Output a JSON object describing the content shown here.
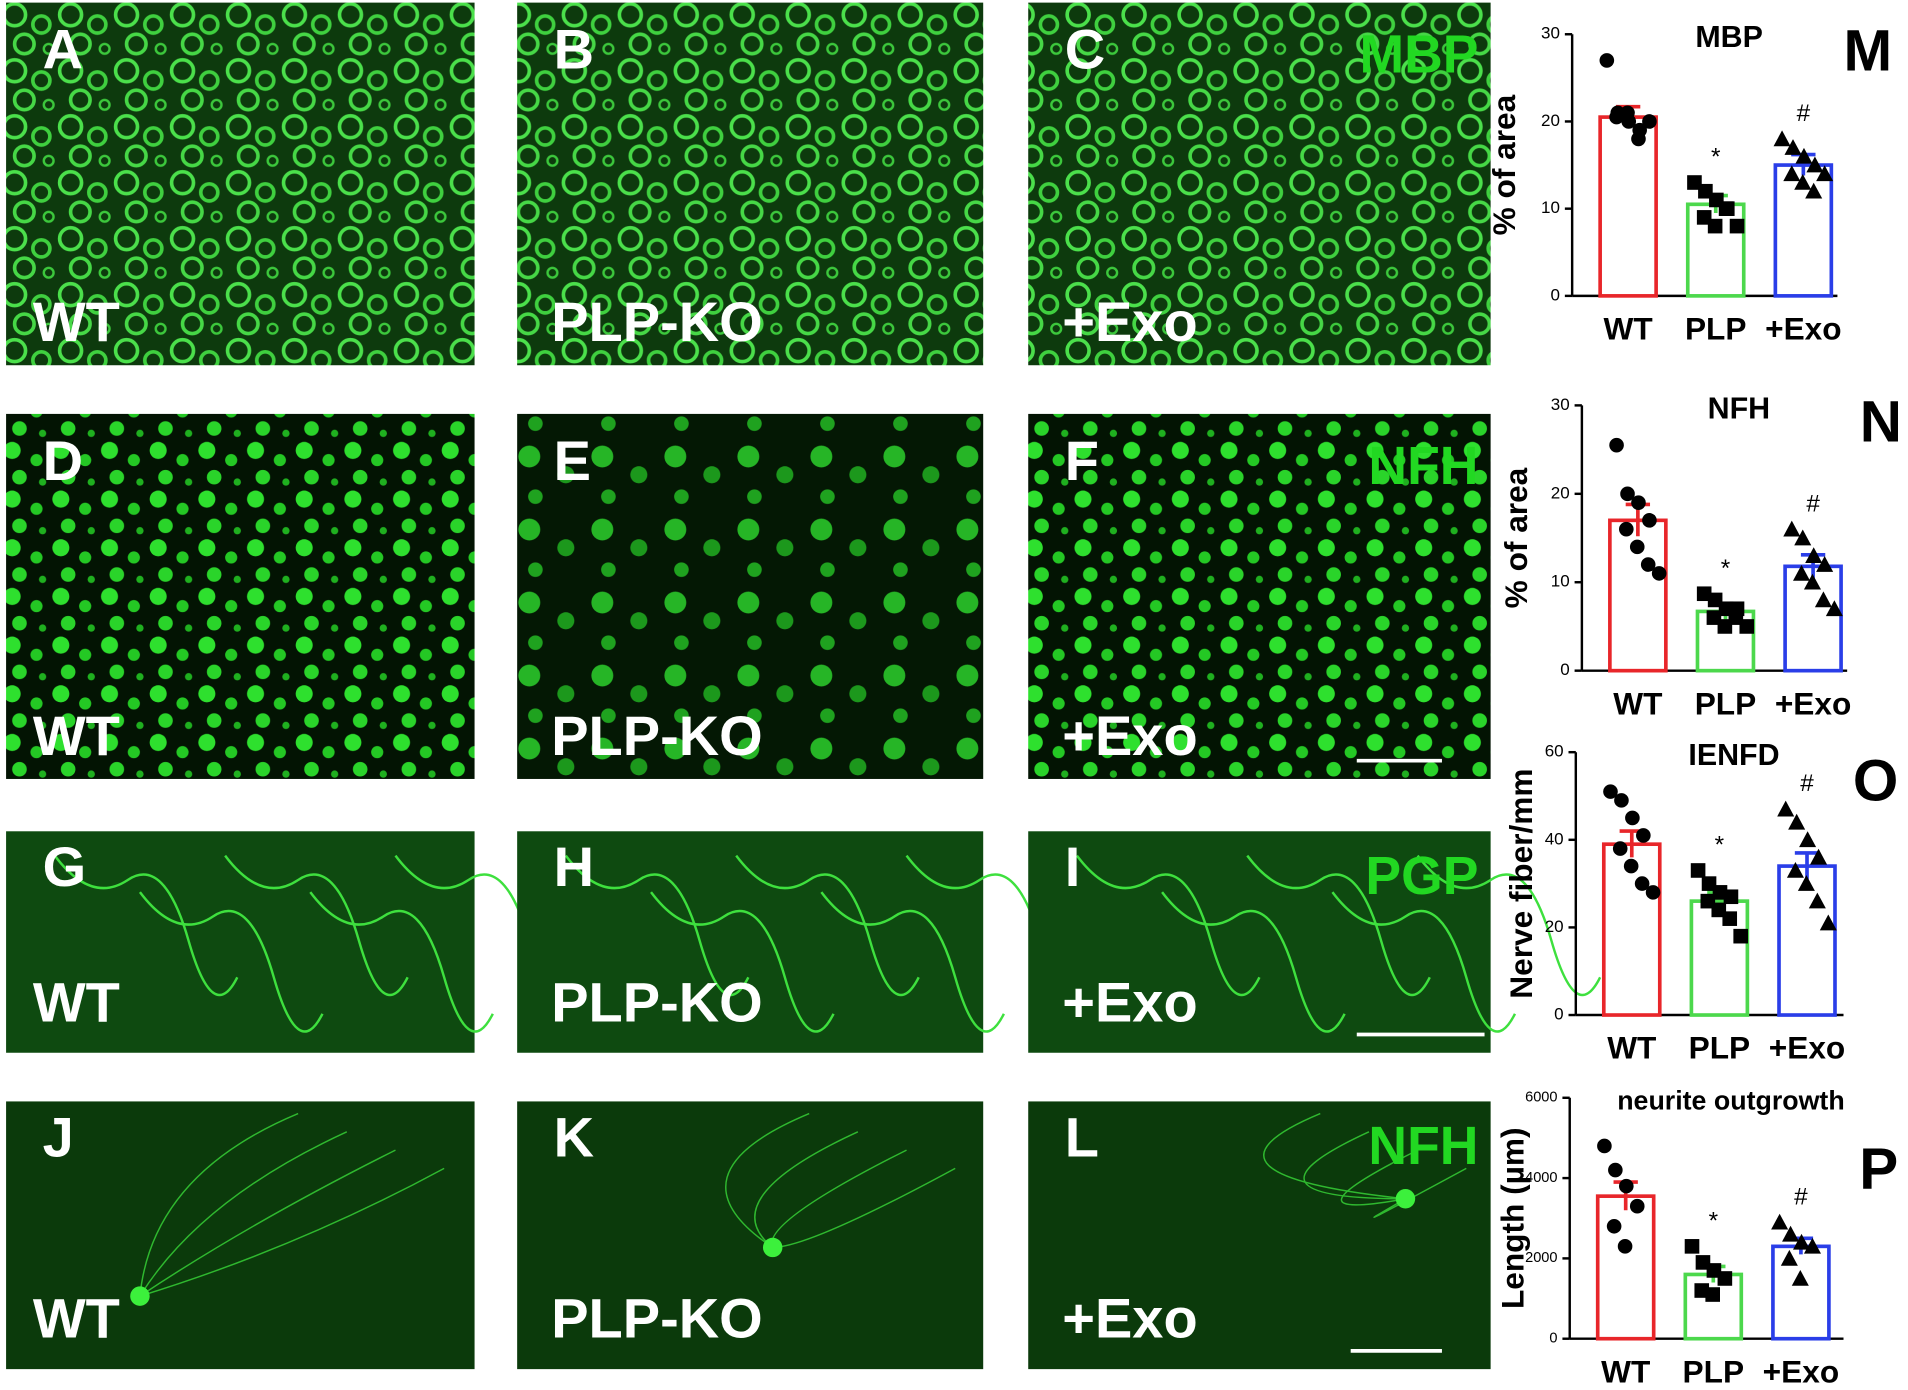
{
  "panels": [
    {
      "letter": "A",
      "label": "WT"
    },
    {
      "letter": "B",
      "label": "PLP-KO"
    },
    {
      "letter": "C",
      "label": "+Exo",
      "stain": "MBP"
    },
    {
      "letter": "D",
      "label": "WT"
    },
    {
      "letter": "E",
      "label": "PLP-KO"
    },
    {
      "letter": "F",
      "label": "+Exo",
      "stain": "NFH"
    },
    {
      "letter": "G",
      "label": "WT"
    },
    {
      "letter": "H",
      "label": "PLP-KO"
    },
    {
      "letter": "I",
      "label": "+Exo",
      "stain": "PGP"
    },
    {
      "letter": "J",
      "label": "WT"
    },
    {
      "letter": "K",
      "label": "PLP-KO"
    },
    {
      "letter": "L",
      "label": "+Exo",
      "stain": "NFH"
    }
  ],
  "chart_data": [
    {
      "type": "bar",
      "title": "MBP",
      "panel": "M",
      "y_label": "% of area",
      "categories": [
        "WT",
        "PLP",
        "+Exo"
      ],
      "colors": [
        "#e8262a",
        "#4cd84c",
        "#2a3ee8"
      ],
      "values": [
        20.5,
        10.5,
        15
      ],
      "errors": [
        1.2,
        1,
        1.2
      ],
      "points": [
        [
          27,
          21,
          20,
          19,
          20.5,
          21,
          18,
          20
        ],
        [
          13,
          12,
          11,
          10,
          9,
          8,
          10,
          8
        ],
        [
          18,
          17,
          16,
          15,
          14,
          13,
          12,
          14
        ]
      ],
      "annotations": [
        null,
        "*",
        "#"
      ],
      "ylim": [
        0,
        30
      ],
      "yticks": [
        0,
        10,
        20,
        30
      ]
    },
    {
      "type": "bar",
      "title": "NFH",
      "panel": "N",
      "y_label": "% of area",
      "categories": [
        "WT",
        "PLP",
        "+Exo"
      ],
      "colors": [
        "#e8262a",
        "#4cd84c",
        "#2a3ee8"
      ],
      "values": [
        17,
        6.7,
        11.8
      ],
      "errors": [
        1.8,
        0.9,
        1.3
      ],
      "points": [
        [
          25.5,
          20,
          19,
          17,
          16,
          14,
          12,
          11
        ],
        [
          8.7,
          8,
          7,
          7,
          6,
          5,
          6,
          5
        ],
        [
          16,
          15,
          13,
          12,
          11,
          10,
          8,
          7
        ]
      ],
      "annotations": [
        null,
        "*",
        "#"
      ],
      "ylim": [
        0,
        30
      ],
      "yticks": [
        0,
        10,
        20,
        30
      ]
    },
    {
      "type": "bar",
      "title": "IENFD",
      "panel": "O",
      "y_label": "Nerve fiber/mm",
      "categories": [
        "WT",
        "PLP",
        "+Exo"
      ],
      "colors": [
        "#e8262a",
        "#4cd84c",
        "#2a3ee8"
      ],
      "values": [
        39,
        26,
        34
      ],
      "errors": [
        3,
        2,
        3
      ],
      "points": [
        [
          51,
          49,
          45,
          41,
          38,
          34,
          30,
          28
        ],
        [
          33,
          30,
          28,
          27,
          26,
          24,
          22,
          18
        ],
        [
          47,
          44,
          40,
          36,
          33,
          30,
          26,
          21
        ]
      ],
      "annotations": [
        null,
        "*",
        "#"
      ],
      "ylim": [
        0,
        60
      ],
      "yticks": [
        0,
        20,
        40,
        60
      ]
    },
    {
      "type": "bar",
      "title": "neurite outgrowth",
      "panel": "P",
      "y_label": "Length (µm)",
      "categories": [
        "WT",
        "PLP",
        "+Exo"
      ],
      "colors": [
        "#e8262a",
        "#4cd84c",
        "#2a3ee8"
      ],
      "values": [
        3550,
        1600,
        2300
      ],
      "errors": [
        350,
        200,
        200
      ],
      "points": [
        [
          4800,
          4200,
          3800,
          3300,
          2800,
          2300
        ],
        [
          2300,
          1900,
          1700,
          1500,
          1200,
          1100
        ],
        [
          2900,
          2600,
          2400,
          2300,
          2000,
          1500
        ]
      ],
      "annotations": [
        null,
        "*",
        "#"
      ],
      "ylim": [
        0,
        6000
      ],
      "yticks": [
        0,
        2000,
        4000,
        6000
      ]
    }
  ]
}
